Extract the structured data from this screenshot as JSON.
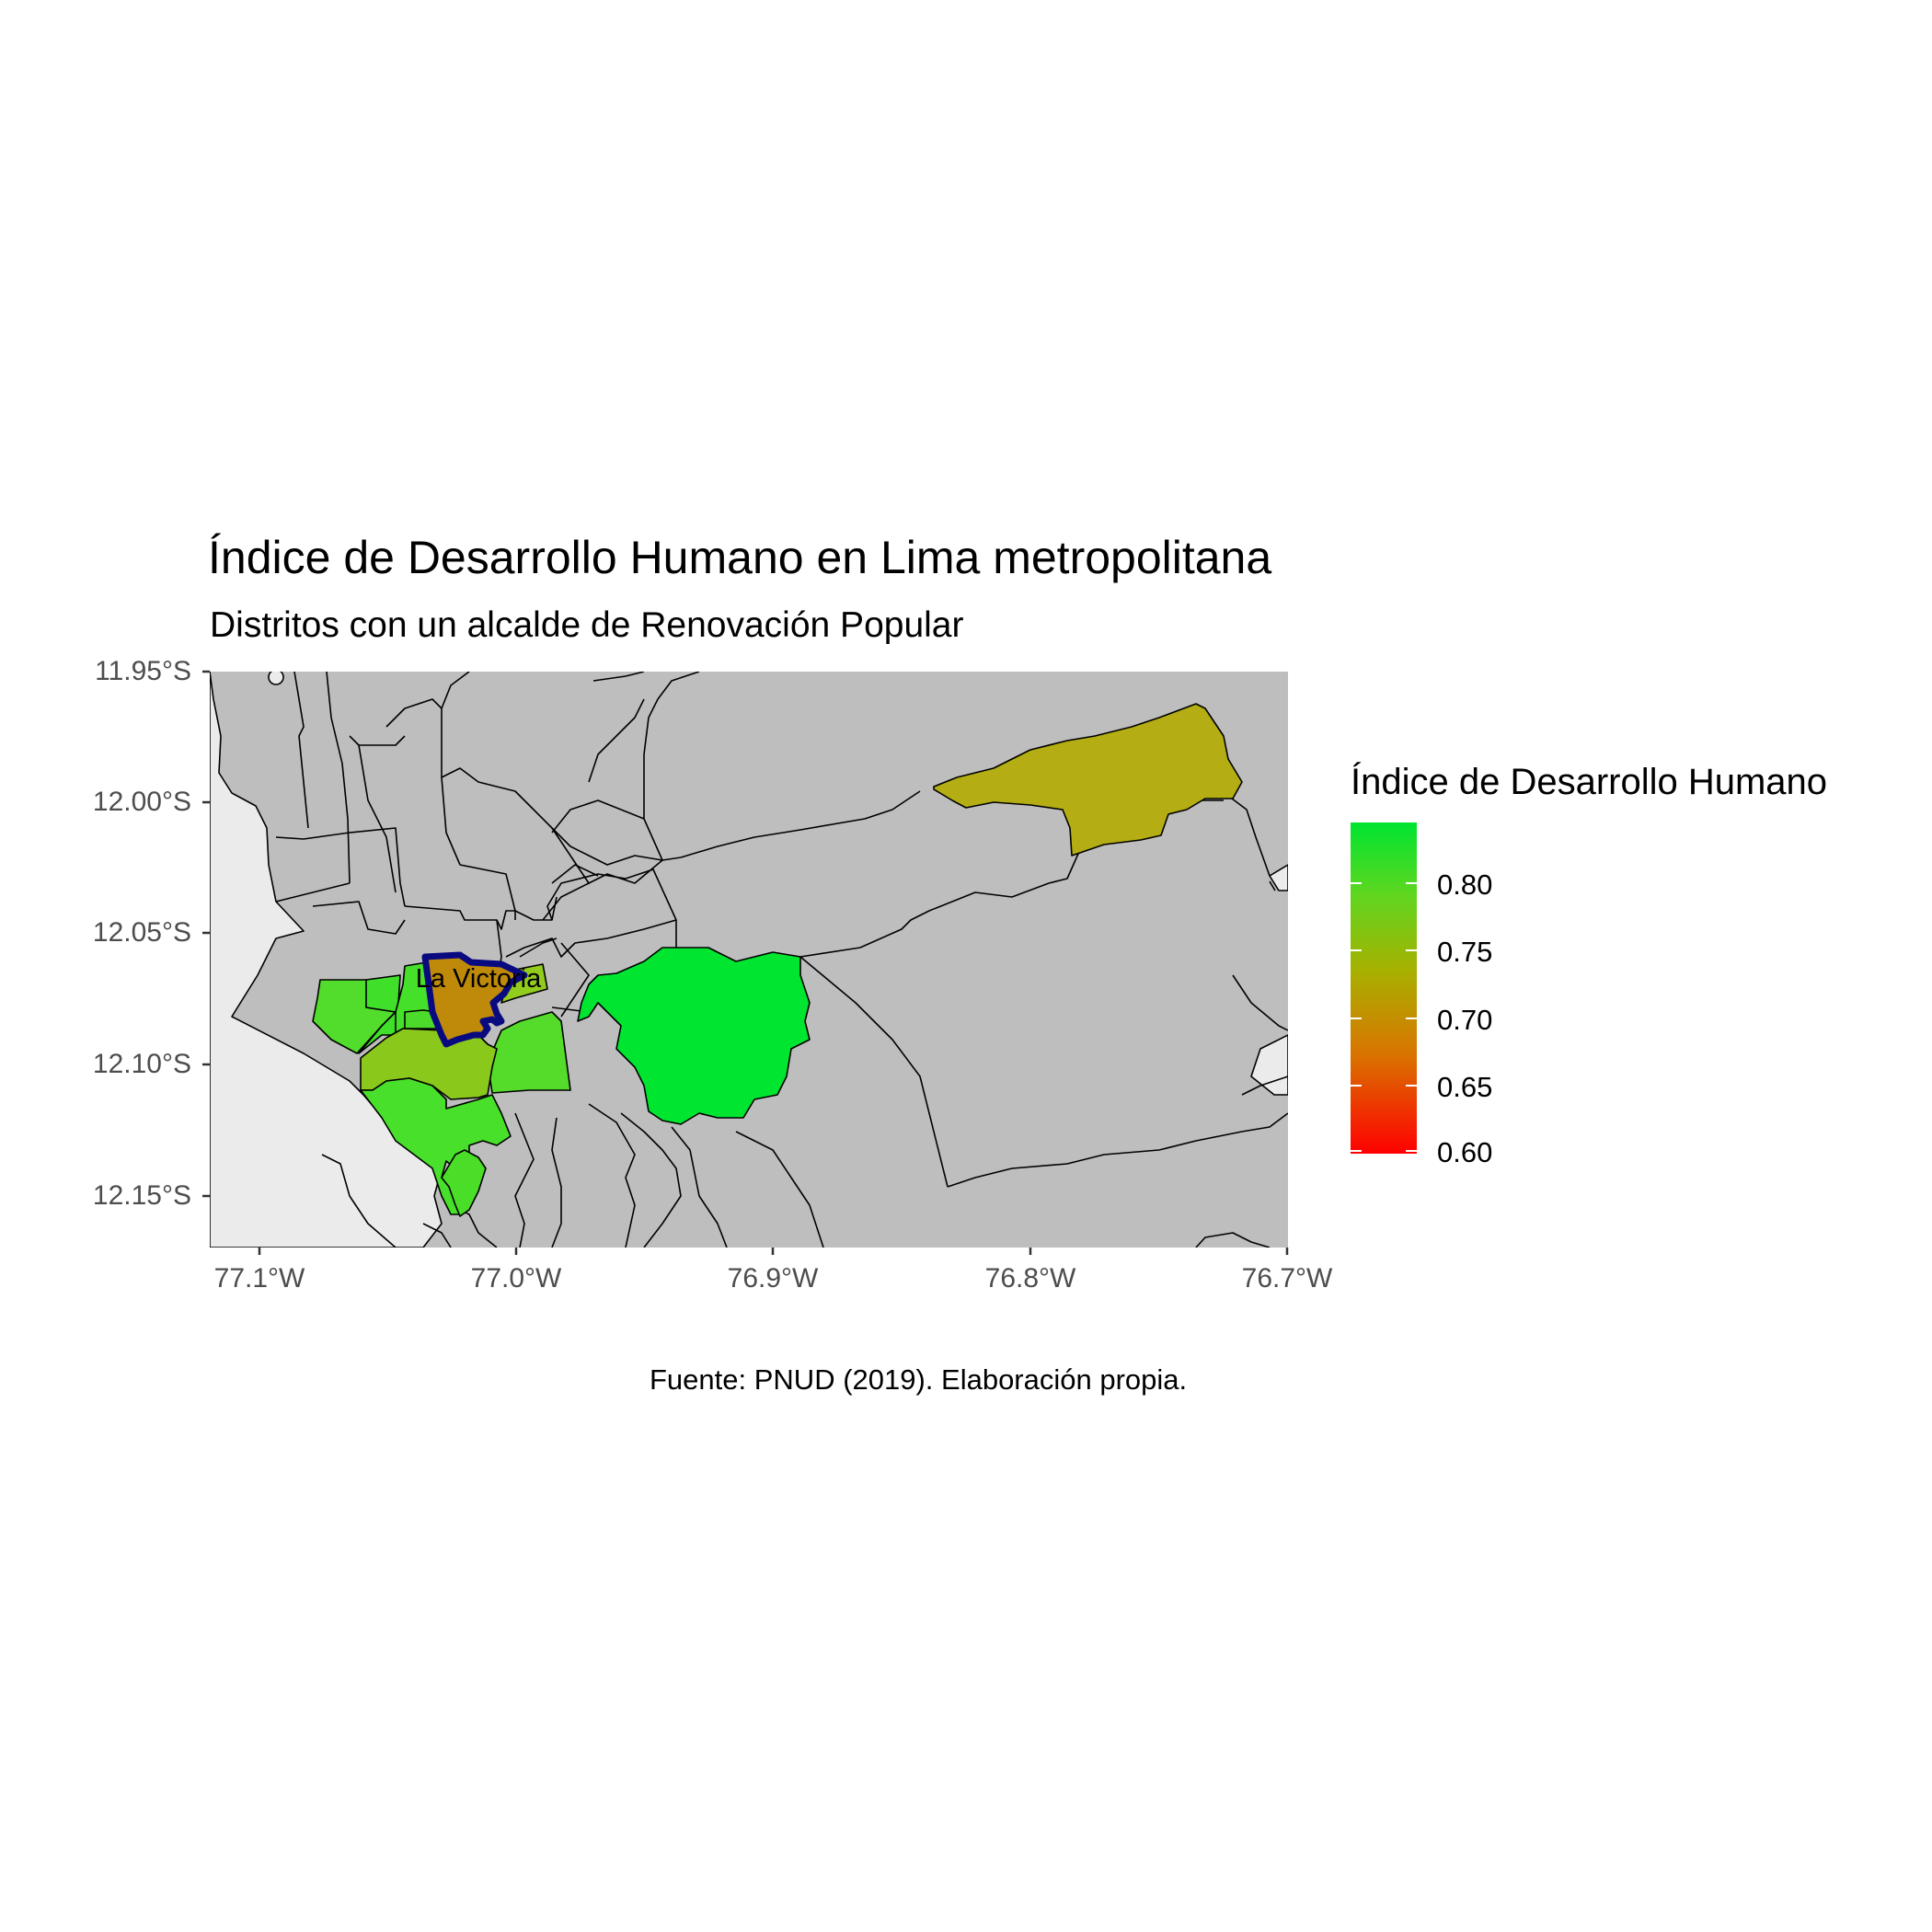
{
  "title": "Índice de Desarrollo Humano en Lima metropolitana",
  "subtitle": "Distritos con un alcalde de Renovación Popular",
  "caption": "Fuente: PNUD (2019). Elaboración propia.",
  "map": {
    "highlight_label": "La Victoria",
    "y_ticks": [
      "11.95°S",
      "12.00°S",
      "12.05°S",
      "12.10°S",
      "12.15°S"
    ],
    "x_ticks": [
      "77.1°W",
      "77.0°W",
      "76.9°W",
      "76.8°W",
      "76.7°W"
    ],
    "colors": {
      "background": "#ebebeb",
      "grid": "#ffffff",
      "district_na": "#bebebe",
      "border": "#000000",
      "highlight_border": "#0a0a80"
    }
  },
  "legend": {
    "title": "Índice de Desarrollo Humano",
    "labels": [
      "0.80",
      "0.75",
      "0.70",
      "0.65",
      "0.60"
    ],
    "low_color": "#ff0000",
    "high_color": "#00e530"
  }
}
